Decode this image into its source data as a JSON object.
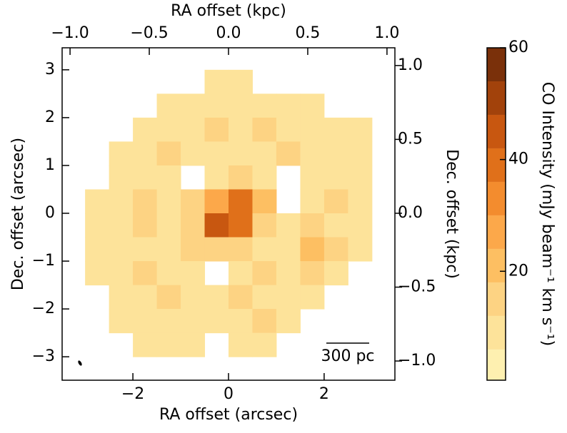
{
  "chart_data": {
    "type": "image",
    "xlabel": "RA offset (arcsec)",
    "ylabel": "Dec. offset (arcsec)",
    "x2label": "RA offset (kpc)",
    "y2label": "Dec. offset (kpc)",
    "xlim": [
      -3.48,
      3.48
    ],
    "ylim": [
      -3.49,
      3.46
    ],
    "xticks": [
      {
        "value": -2,
        "label": "−2"
      },
      0,
      2
    ],
    "yticks": [
      {
        "value": -3,
        "label": "−3"
      },
      {
        "value": -2,
        "label": "−2"
      },
      {
        "value": -1,
        "label": "−1"
      },
      0,
      1,
      2,
      3
    ],
    "x2lim": [
      -1.05,
      1.05
    ],
    "x2ticks": [
      {
        "value": -1.0,
        "label": "−1.0"
      },
      {
        "value": -0.5,
        "label": "−0.5"
      },
      {
        "value": 0.0,
        "label": "0.0"
      },
      {
        "value": 0.5,
        "label": "0.5"
      },
      {
        "value": 1.0,
        "label": "1.0"
      }
    ],
    "y2lim": [
      -1.13,
      1.12
    ],
    "y2ticks": [
      {
        "value": -1.0,
        "label": "−1.0"
      },
      {
        "value": -0.5,
        "label": "−0.5"
      },
      {
        "value": 0.0,
        "label": "0.0"
      },
      {
        "value": 0.5,
        "label": "0.5"
      },
      {
        "value": 1.0,
        "label": "1.0"
      }
    ],
    "scalebar_label": "300 pc",
    "x": [
      -3.25,
      -2.75,
      -2.25,
      -1.75,
      -1.25,
      -0.75,
      -0.25,
      0.25,
      0.75,
      1.25,
      1.75,
      2.25,
      2.75,
      3.25
    ],
    "y": [
      3.25,
      2.75,
      2.25,
      1.75,
      1.25,
      0.75,
      0.25,
      -0.25,
      -0.75,
      -1.25,
      -1.75,
      -2.25,
      -2.75,
      -3.25
    ],
    "z": [
      [
        null,
        null,
        null,
        null,
        null,
        null,
        null,
        null,
        null,
        null,
        null,
        null,
        null,
        null
      ],
      [
        null,
        null,
        null,
        null,
        null,
        null,
        10,
        8,
        null,
        null,
        null,
        null,
        null,
        null
      ],
      [
        null,
        null,
        null,
        null,
        8,
        10,
        12,
        12,
        10,
        10,
        8,
        null,
        null,
        null
      ],
      [
        null,
        null,
        null,
        8,
        12,
        12,
        14,
        12,
        14,
        12,
        10,
        8,
        8,
        null
      ],
      [
        null,
        null,
        8,
        12,
        14,
        10,
        8,
        10,
        12,
        14,
        12,
        10,
        8,
        null
      ],
      [
        null,
        null,
        10,
        12,
        10,
        null,
        12,
        14,
        8,
        null,
        10,
        12,
        10,
        null
      ],
      [
        null,
        8,
        12,
        14,
        10,
        14,
        30,
        40,
        20,
        null,
        10,
        14,
        10,
        null
      ],
      [
        null,
        8,
        12,
        14,
        12,
        16,
        45,
        40,
        18,
        12,
        14,
        12,
        8,
        null
      ],
      [
        null,
        10,
        12,
        10,
        12,
        14,
        16,
        14,
        12,
        10,
        20,
        14,
        8,
        null
      ],
      [
        null,
        8,
        12,
        14,
        10,
        12,
        null,
        12,
        14,
        12,
        14,
        10,
        null,
        null
      ],
      [
        null,
        null,
        10,
        12,
        14,
        12,
        10,
        14,
        12,
        12,
        10,
        null,
        null,
        null
      ],
      [
        null,
        null,
        8,
        12,
        12,
        10,
        12,
        12,
        14,
        12,
        null,
        null,
        null,
        null
      ],
      [
        null,
        null,
        null,
        8,
        10,
        8,
        null,
        10,
        8,
        null,
        null,
        null,
        null,
        null
      ],
      [
        null,
        null,
        null,
        null,
        null,
        null,
        null,
        null,
        null,
        null,
        null,
        null,
        null,
        null
      ]
    ],
    "colorbar": {
      "label": "CO Intensity (mJy beam⁻¹ km s⁻¹)",
      "levels": [
        0.5,
        6,
        12,
        18,
        24,
        30,
        36,
        42,
        48,
        54,
        60
      ],
      "colors": [
        "#fef0b0",
        "#fde39a",
        "#fdd383",
        "#fdbf62",
        "#fca84a",
        "#f38c2e",
        "#e0701a",
        "#c85710",
        "#a2420b",
        "#7a300a"
      ],
      "ticks": [
        20,
        40,
        60
      ]
    }
  }
}
